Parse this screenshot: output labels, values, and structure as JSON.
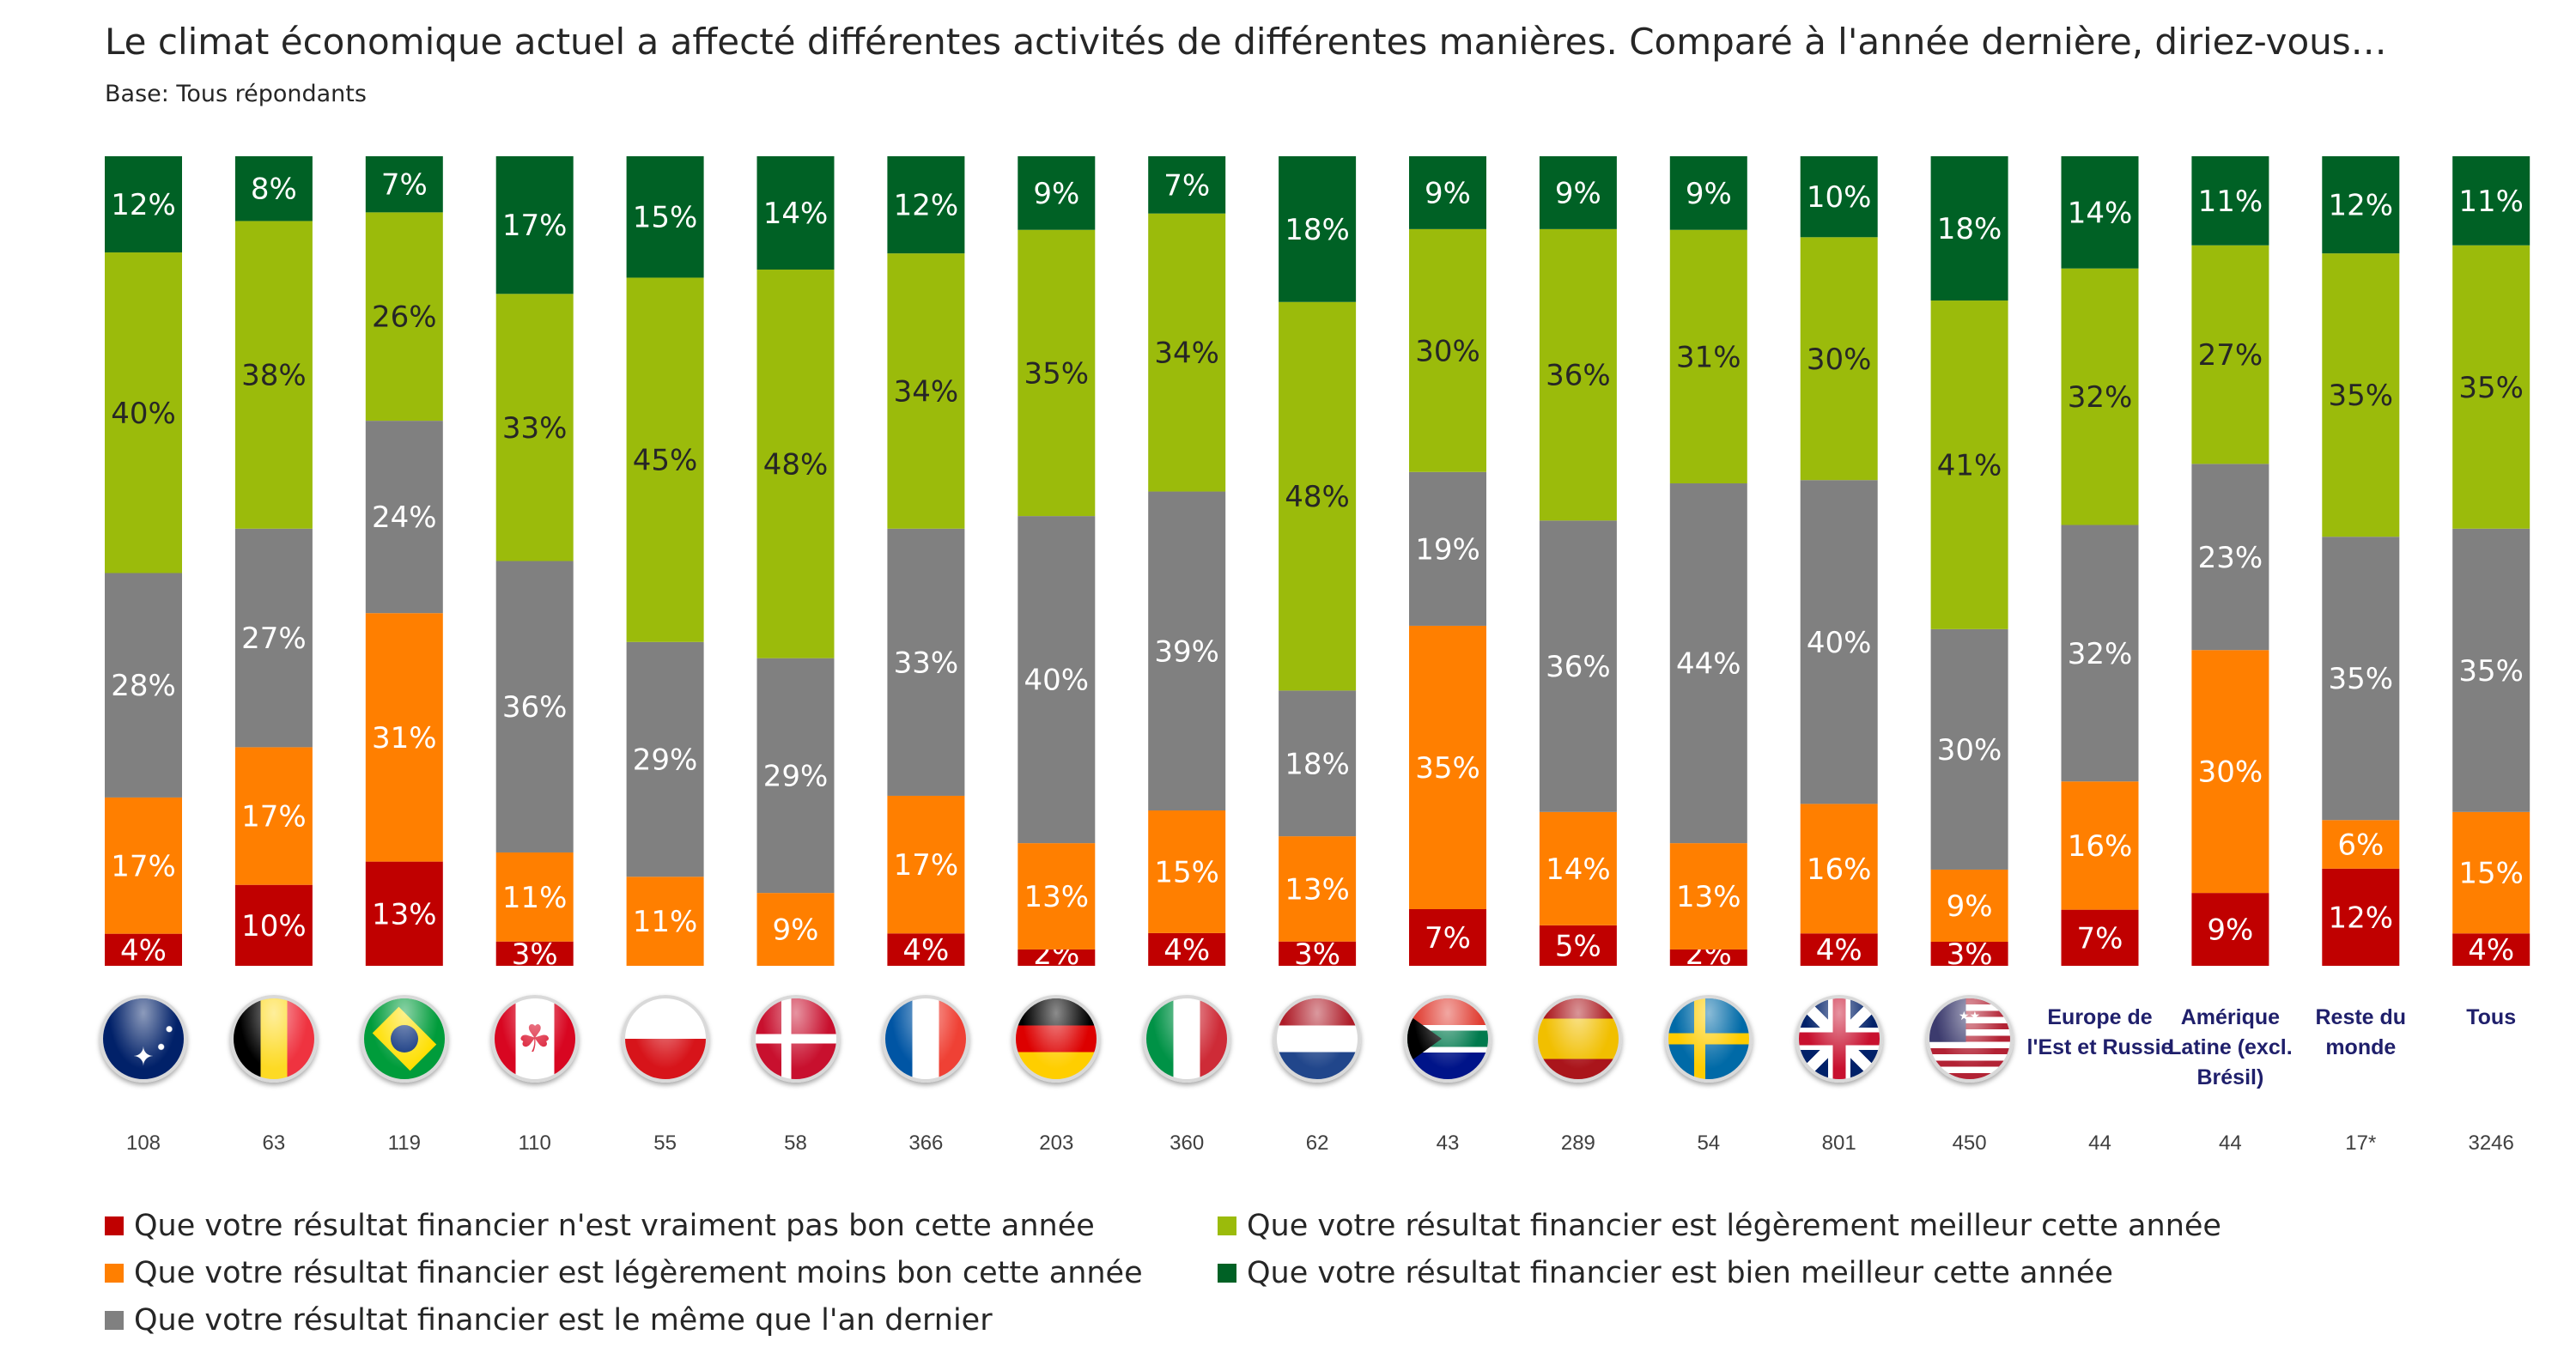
{
  "title": "Le climat économique actuel a affecté différentes activités de différentes manières. Comparé à l'année dernière, diriez-vous…",
  "subtitle": "Base: Tous répondants",
  "colors": {
    "vraiment_pas_bon": "#c00000",
    "legerement_moins_bon": "#ff7f00",
    "meme": "#808080",
    "legerement_meilleur": "#9bbb0b",
    "bien_meilleur": "#006125"
  },
  "chart_data": {
    "type": "bar",
    "stacked": true,
    "ylim": [
      0,
      100
    ],
    "categories": [
      "Australie",
      "Belgique",
      "Brésil",
      "Canada",
      "République tchèque",
      "Danemark",
      "France",
      "Allemagne",
      "Italie",
      "Pays-Bas",
      "Afrique du Sud",
      "Espagne",
      "Suède",
      "Royaume-Uni",
      "États-Unis",
      "Europe de l'Est et Russie",
      "Amérique Latine (excl. Brésil)",
      "Reste du monde",
      "Tous"
    ],
    "category_icons": [
      "australia-flag",
      "belgium-flag",
      "brazil-flag",
      "canada-flag",
      "czech-flag",
      "denmark-flag",
      "france-flag",
      "germany-flag",
      "italy-flag",
      "netherlands-flag",
      "south-africa-flag",
      "spain-flag",
      "sweden-flag",
      "uk-flag",
      "usa-flag",
      null,
      null,
      null,
      null
    ],
    "category_labels": [
      "",
      "",
      "",
      "",
      "",
      "",
      "",
      "",
      "",
      "",
      "",
      "",
      "",
      "",
      "",
      "Europe de l'Est et Russie",
      "Amérique Latine (excl. Brésil)",
      "Reste du monde",
      "Tous"
    ],
    "base_n": [
      "108",
      "63",
      "119",
      "110",
      "55",
      "58",
      "366",
      "203",
      "360",
      "62",
      "43",
      "289",
      "54",
      "801",
      "450",
      "44",
      "44",
      "17*",
      "3246"
    ],
    "legend_position": "bottom",
    "series": [
      {
        "key": "vraiment_pas_bon",
        "name": "Que votre résultat financier n'est vraiment pas bon cette année",
        "color": "#c00000",
        "values": [
          4,
          10,
          13,
          3,
          0,
          0,
          4,
          2,
          4,
          3,
          7,
          5,
          2,
          4,
          3,
          7,
          9,
          12,
          4
        ]
      },
      {
        "key": "legerement_moins_bon",
        "name": "Que votre résultat financier est légèrement moins bon cette année",
        "color": "#ff7f00",
        "values": [
          17,
          17,
          31,
          11,
          11,
          9,
          17,
          13,
          15,
          13,
          35,
          14,
          13,
          16,
          9,
          16,
          30,
          6,
          15
        ]
      },
      {
        "key": "meme",
        "name": "Que votre résultat financier est le même que l'an dernier",
        "color": "#808080",
        "values": [
          28,
          27,
          24,
          36,
          29,
          29,
          33,
          40,
          39,
          18,
          19,
          36,
          44,
          40,
          30,
          32,
          23,
          35,
          35
        ]
      },
      {
        "key": "legerement_meilleur",
        "name": "Que votre résultat financier est légèrement meilleur cette année",
        "color": "#9bbb0b",
        "values": [
          40,
          38,
          26,
          33,
          45,
          48,
          34,
          35,
          34,
          48,
          30,
          36,
          31,
          30,
          41,
          32,
          27,
          35,
          35
        ]
      },
      {
        "key": "bien_meilleur",
        "name": "Que votre résultat financier est bien meilleur cette année",
        "color": "#006125",
        "values": [
          12,
          8,
          7,
          17,
          15,
          14,
          12,
          9,
          7,
          18,
          9,
          9,
          9,
          10,
          18,
          14,
          11,
          12,
          11
        ]
      }
    ]
  },
  "legend": [
    {
      "label": "Que votre résultat financier n'est vraiment pas bon cette année",
      "color": "#c00000"
    },
    {
      "label": "Que votre résultat financier est légèrement moins bon cette année",
      "color": "#ff7f00"
    },
    {
      "label": "Que votre résultat financier est le même que l'an dernier",
      "color": "#808080"
    },
    {
      "label": "Que votre résultat financier est légèrement meilleur cette année",
      "color": "#9bbb0b"
    },
    {
      "label": "Que votre résultat financier est bien meilleur cette année",
      "color": "#006125"
    }
  ]
}
